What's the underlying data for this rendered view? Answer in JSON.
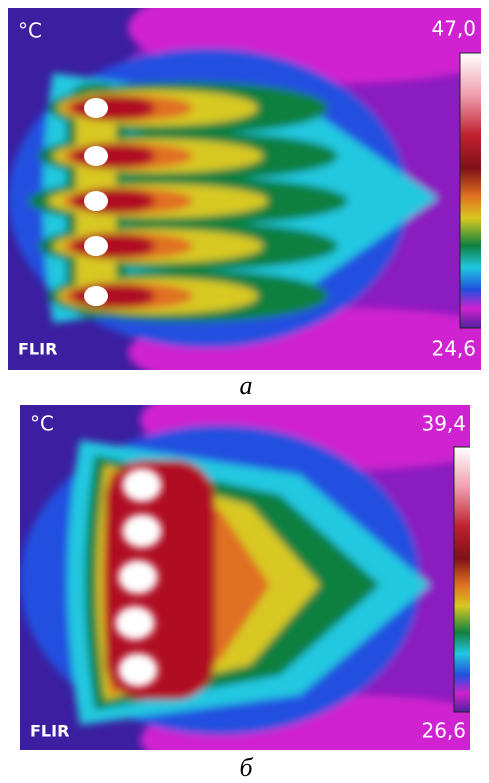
{
  "figures": [
    {
      "unit": "°C",
      "max": "47,0",
      "min": "24,6",
      "logo": "FLIR",
      "caption": "а"
    },
    {
      "unit": "°C",
      "max": "39,4",
      "min": "26,6",
      "logo": "FLIR",
      "caption": "б"
    }
  ]
}
